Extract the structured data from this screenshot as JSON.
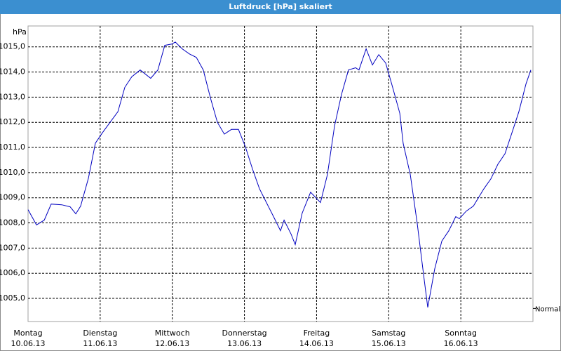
{
  "chart_data": {
    "type": "line",
    "title": "Luftdruck [hPa] skaliert",
    "y_unit": "hPa",
    "x": [
      0,
      2.8,
      5.4,
      7.7,
      11.2,
      14.0,
      15.9,
      17.5,
      20.1,
      22.4,
      24.7,
      27.3,
      29.9,
      32.2,
      34.5,
      37.3,
      40.8,
      43.2,
      45.5,
      47.8,
      49.0,
      51.3,
      53.7,
      56.0,
      58.3,
      60.7,
      63.0,
      65.3,
      67.7,
      70.0,
      72.3,
      74.7,
      77.0,
      79.3,
      81.7,
      84.0,
      85.2,
      87.5,
      88.9,
      91.2,
      94.0,
      97.3,
      99.6,
      102.0,
      104.3,
      106.6,
      109.0,
      110.1,
      112.5,
      114.6,
      116.7,
      119.0,
      121.3,
      123.7,
      124.8,
      127.2,
      129.5,
      131.8,
      133.0,
      135.3,
      137.7,
      140.0,
      142.3,
      143.5,
      145.8,
      148.2,
      151.7,
      154.0,
      156.3,
      158.7,
      161.0,
      163.3,
      165.7,
      167.3
    ],
    "series": [
      {
        "color": "#0000c0",
        "values": [
          1008.53,
          1007.92,
          1008.11,
          1008.75,
          1008.72,
          1008.64,
          1008.36,
          1008.67,
          1009.78,
          1011.17,
          1011.58,
          1012.0,
          1012.42,
          1013.39,
          1013.81,
          1014.08,
          1013.75,
          1014.08,
          1015.06,
          1015.11,
          1015.19,
          1014.92,
          1014.72,
          1014.58,
          1014.08,
          1012.97,
          1012.0,
          1011.53,
          1011.72,
          1011.72,
          1011.03,
          1010.14,
          1009.36,
          1008.81,
          1008.25,
          1007.69,
          1008.11,
          1007.56,
          1007.14,
          1008.39,
          1009.22,
          1008.81,
          1009.92,
          1011.86,
          1013.11,
          1014.08,
          1014.17,
          1014.08,
          1014.92,
          1014.28,
          1014.69,
          1014.36,
          1013.39,
          1012.36,
          1011.17,
          1009.92,
          1007.97,
          1005.75,
          1004.64,
          1006.17,
          1007.28,
          1007.69,
          1008.25,
          1008.17,
          1008.47,
          1008.67,
          1009.36,
          1009.75,
          1010.33,
          1010.75,
          1011.58,
          1012.42,
          1013.53,
          1014.08
        ]
      }
    ],
    "xlim": [
      0,
      168
    ],
    "xticks": [
      {
        "value": 0,
        "label": "Montag",
        "date": "10.06.13"
      },
      {
        "value": 24,
        "label": "Dienstag",
        "date": "11.06.13"
      },
      {
        "value": 48,
        "label": "Mittwoch",
        "date": "12.06.13"
      },
      {
        "value": 72,
        "label": "Donnerstag",
        "date": "13.06.13"
      },
      {
        "value": 96,
        "label": "Freitag",
        "date": "14.06.13"
      },
      {
        "value": 120,
        "label": "Samstag",
        "date": "15.06.13"
      },
      {
        "value": 144,
        "label": "Sonntag",
        "date": "16.06.13"
      }
    ],
    "ylim": [
      1004.08,
      1015.83
    ],
    "yticks": [
      {
        "value": 1005,
        "label": "1005,0"
      },
      {
        "value": 1006,
        "label": "1006,0"
      },
      {
        "value": 1007,
        "label": "1007,0"
      },
      {
        "value": 1008,
        "label": "1008,0"
      },
      {
        "value": 1009,
        "label": "1009,0"
      },
      {
        "value": 1010,
        "label": "1010,0"
      },
      {
        "value": 1011,
        "label": "1011,0"
      },
      {
        "value": 1012,
        "label": "1012,0"
      },
      {
        "value": 1013,
        "label": "1013,0"
      },
      {
        "value": 1014,
        "label": "1014,0"
      },
      {
        "value": 1015,
        "label": "1015,0"
      }
    ],
    "reference": {
      "value": 1004.6,
      "label": "Normal"
    },
    "grid": true
  }
}
